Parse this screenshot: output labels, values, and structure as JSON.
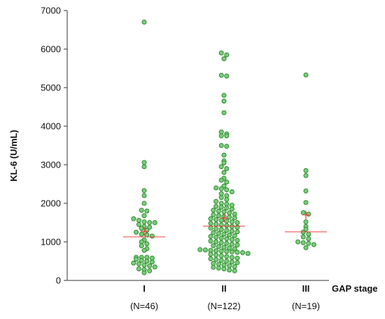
{
  "chart_data": {
    "type": "scatter",
    "subtype": "dot-plot",
    "title": "",
    "ylabel": "KL-6 (U/mL)",
    "xlabel": "GAP stage",
    "ylim": [
      0,
      7000
    ],
    "yticks": [
      0,
      1000,
      2000,
      3000,
      4000,
      5000,
      6000,
      7000
    ],
    "grid": false,
    "legend": "none",
    "colors": {
      "point_fill": "#7ccd7c",
      "point_stroke": "#2e8b2e",
      "median_line": "#ee4444",
      "mean_marker": "#ee4444",
      "axis": "#333333"
    },
    "groups": [
      {
        "category": "I",
        "n_label": "(N=46)",
        "median": 1130,
        "mean": 1270,
        "values": [
          6700,
          3060,
          2950,
          2330,
          2200,
          2000,
          1820,
          1800,
          1680,
          1600,
          1560,
          1520,
          1500,
          1500,
          1450,
          1400,
          1380,
          1350,
          1300,
          1250,
          1200,
          1180,
          1150,
          1050,
          1000,
          950,
          900,
          820,
          780,
          600,
          600,
          600,
          580,
          550,
          520,
          500,
          480,
          450,
          430,
          400,
          380,
          350,
          300,
          280,
          250,
          200
        ]
      },
      {
        "category": "II",
        "n_label": "(N=122)",
        "median": 1410,
        "mean": 1620,
        "values": [
          5900,
          5850,
          5750,
          5320,
          5300,
          4800,
          4650,
          4350,
          3850,
          3800,
          3750,
          3750,
          3500,
          3480,
          3250,
          3100,
          3050,
          2950,
          2900,
          2800,
          2650,
          2600,
          2550,
          2450,
          2400,
          2380,
          2350,
          2300,
          2250,
          2200,
          2150,
          2100,
          2050,
          2000,
          1980,
          1950,
          1920,
          1900,
          1880,
          1850,
          1820,
          1800,
          1780,
          1750,
          1720,
          1700,
          1680,
          1660,
          1640,
          1620,
          1600,
          1580,
          1560,
          1540,
          1520,
          1500,
          1480,
          1460,
          1440,
          1420,
          1400,
          1380,
          1360,
          1340,
          1320,
          1300,
          1280,
          1260,
          1240,
          1220,
          1200,
          1180,
          1160,
          1140,
          1120,
          1100,
          1080,
          1060,
          1040,
          1020,
          1000,
          980,
          960,
          940,
          920,
          900,
          880,
          860,
          840,
          820,
          800,
          790,
          780,
          770,
          760,
          750,
          740,
          730,
          720,
          700,
          680,
          660,
          640,
          620,
          600,
          580,
          560,
          540,
          520,
          500,
          480,
          460,
          440,
          420,
          400,
          380,
          360,
          340,
          320,
          300,
          270,
          250
        ]
      },
      {
        "category": "III",
        "n_label": "(N=19)",
        "median": 1260,
        "mean": 1700,
        "values": [
          5330,
          2850,
          2720,
          2320,
          2020,
          1760,
          1720,
          1520,
          1400,
          1330,
          1250,
          1200,
          1130,
          1080,
          1000,
          980,
          960,
          930,
          850
        ]
      }
    ]
  }
}
